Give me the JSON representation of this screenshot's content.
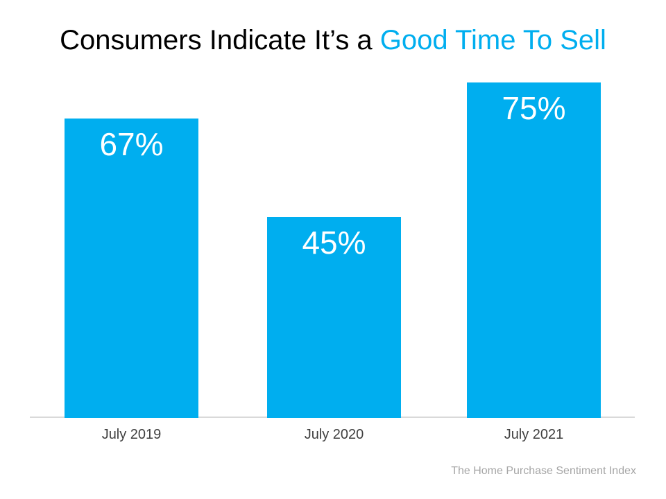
{
  "title": {
    "prefix": "Consumers Indicate It’s a ",
    "highlight": "Good Time To Sell"
  },
  "source": "The Home Purchase Sentiment Index",
  "colors": {
    "accent": "#00AEEF",
    "bar": "#00AEEF",
    "bar_label": "#FFFFFF",
    "axis_line": "#D9D9D9",
    "category_label": "#404040",
    "source_text": "#A6A6A6"
  },
  "chart_data": {
    "type": "bar",
    "title": "Consumers Indicate It’s a Good Time To Sell",
    "categories": [
      "July 2019",
      "July 2020",
      "July 2021"
    ],
    "values": [
      67,
      45,
      75
    ],
    "value_labels": [
      "67%",
      "45%",
      "75%"
    ],
    "xlabel": "",
    "ylabel": "",
    "ylim": [
      0,
      93
    ],
    "grid": false,
    "legend": false,
    "bar_color": "#00AEEF",
    "value_label_position": "inside-end",
    "value_label_color": "#FFFFFF"
  }
}
